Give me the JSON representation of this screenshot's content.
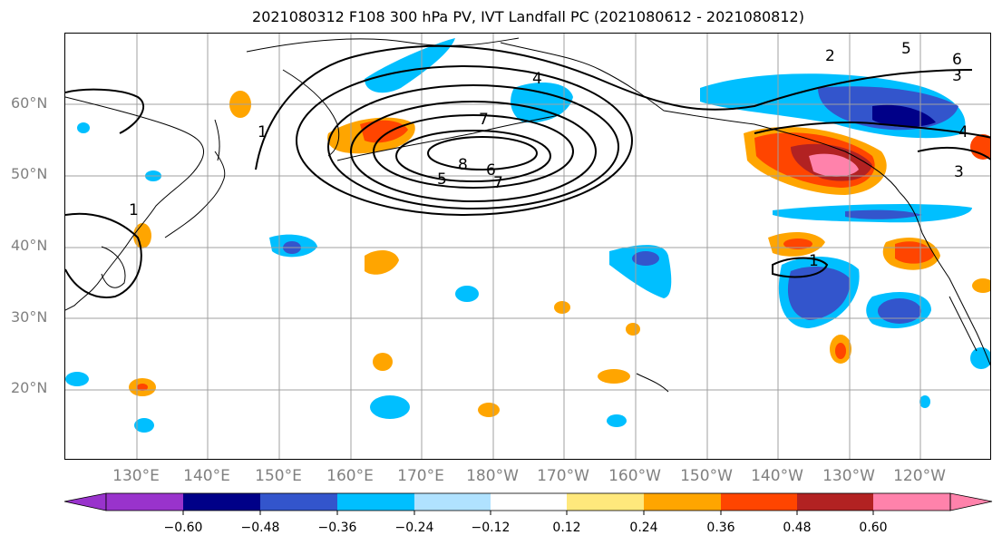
{
  "title": "2021080312 F108 300 hPa PV, IVT Landfall PC (2021080612 - 2021080812)",
  "map": {
    "projection": "cylindrical",
    "lat_labels": [
      "60°N",
      "50°N",
      "40°N",
      "30°N",
      "20°N"
    ],
    "lon_labels": [
      "130°E",
      "140°E",
      "150°E",
      "160°E",
      "170°E",
      "180°W",
      "170°W",
      "160°W",
      "150°W",
      "140°W",
      "130°W",
      "120°W"
    ],
    "grid": true,
    "contour_labels": [
      "7",
      "8",
      "6",
      "5",
      "7",
      "1",
      "1",
      "4",
      "2",
      "5",
      "6",
      "3",
      "1",
      "4",
      "3"
    ]
  },
  "colorbar": {
    "tick_labels": [
      "−0.60",
      "−0.48",
      "−0.36",
      "−0.24",
      "−0.12",
      "0.12",
      "0.24",
      "0.36",
      "0.48",
      "0.60"
    ],
    "colors": [
      "#9933cc",
      "#000088",
      "#3355cc",
      "#00bfff",
      "#b0e2ff",
      "#ffffff",
      "#ffe87c",
      "#ffa500",
      "#ff4500",
      "#b22222",
      "#ff82ab"
    ]
  },
  "colors": {
    "grid": "#a0a0a0",
    "coast": "#000000",
    "label": "#808080"
  }
}
